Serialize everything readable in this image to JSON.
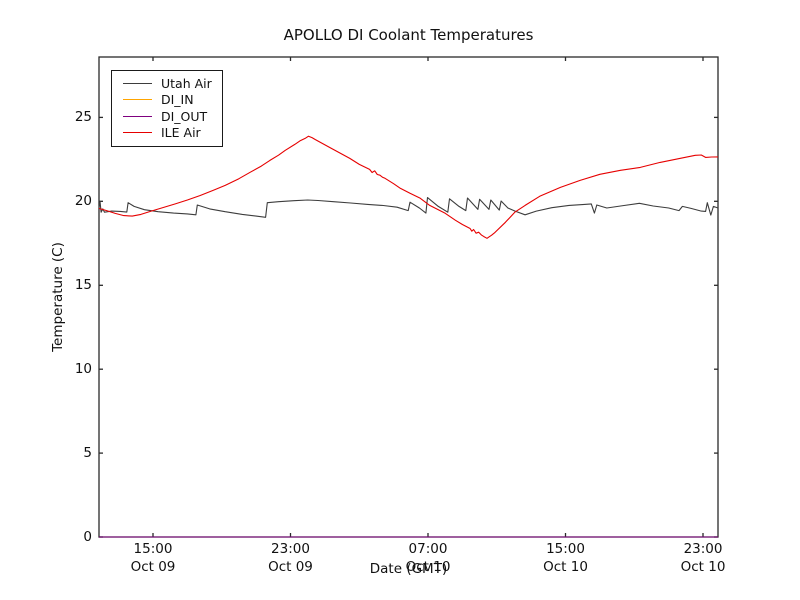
{
  "title": "APOLLO DI Coolant Temperatures",
  "chart_data": {
    "type": "line",
    "title": "APOLLO DI Coolant Temperatures",
    "xlabel": "Date (GMT)",
    "ylabel": "Temperature (C)",
    "x_unit": "hours since Oct 09 00:00 GMT",
    "xlim": [
      11.86,
      47.87
    ],
    "ylim": [
      0,
      28.6
    ],
    "grid": false,
    "legend_position": "upper left",
    "y_ticks": [
      0,
      5,
      10,
      15,
      20,
      25
    ],
    "x_ticks": [
      {
        "value": 15,
        "line1": "15:00",
        "line2": "Oct 09"
      },
      {
        "value": 23,
        "line1": "23:00",
        "line2": "Oct 09"
      },
      {
        "value": 31,
        "line1": "07:00",
        "line2": "Oct 10"
      },
      {
        "value": 39,
        "line1": "15:00",
        "line2": "Oct 10"
      },
      {
        "value": 47,
        "line1": "23:00",
        "line2": "Oct 10"
      }
    ],
    "series": [
      {
        "name": "Utah Air",
        "color": "#3d3d3d",
        "points": [
          [
            11.86,
            19.62
          ],
          [
            11.92,
            20.0
          ],
          [
            11.98,
            19.35
          ],
          [
            12.08,
            19.55
          ],
          [
            12.18,
            19.35
          ],
          [
            12.6,
            19.42
          ],
          [
            13.1,
            19.4
          ],
          [
            13.48,
            19.36
          ],
          [
            13.55,
            19.92
          ],
          [
            13.9,
            19.7
          ],
          [
            14.5,
            19.5
          ],
          [
            15.3,
            19.38
          ],
          [
            16.2,
            19.3
          ],
          [
            17.0,
            19.25
          ],
          [
            17.5,
            19.2
          ],
          [
            17.58,
            19.78
          ],
          [
            18.3,
            19.55
          ],
          [
            19.2,
            19.38
          ],
          [
            20.2,
            19.22
          ],
          [
            21.0,
            19.12
          ],
          [
            21.55,
            19.05
          ],
          [
            21.65,
            19.92
          ],
          [
            22.3,
            19.98
          ],
          [
            23.2,
            20.04
          ],
          [
            24.0,
            20.08
          ],
          [
            24.6,
            20.05
          ],
          [
            25.5,
            19.98
          ],
          [
            26.5,
            19.9
          ],
          [
            27.5,
            19.82
          ],
          [
            28.4,
            19.75
          ],
          [
            29.2,
            19.65
          ],
          [
            29.85,
            19.45
          ],
          [
            29.95,
            19.95
          ],
          [
            30.5,
            19.6
          ],
          [
            30.88,
            19.3
          ],
          [
            30.97,
            20.22
          ],
          [
            31.6,
            19.7
          ],
          [
            32.15,
            19.35
          ],
          [
            32.25,
            20.15
          ],
          [
            32.8,
            19.7
          ],
          [
            33.2,
            19.45
          ],
          [
            33.3,
            20.2
          ],
          [
            33.9,
            19.52
          ],
          [
            34.0,
            20.12
          ],
          [
            34.55,
            19.52
          ],
          [
            34.65,
            20.08
          ],
          [
            35.15,
            19.48
          ],
          [
            35.25,
            20.02
          ],
          [
            35.65,
            19.6
          ],
          [
            36.1,
            19.4
          ],
          [
            36.65,
            19.2
          ],
          [
            37.3,
            19.42
          ],
          [
            38.2,
            19.62
          ],
          [
            39.2,
            19.76
          ],
          [
            40.1,
            19.82
          ],
          [
            40.5,
            19.85
          ],
          [
            40.68,
            19.3
          ],
          [
            40.82,
            19.78
          ],
          [
            41.4,
            19.6
          ],
          [
            42.4,
            19.75
          ],
          [
            43.3,
            19.88
          ],
          [
            44.1,
            19.72
          ],
          [
            45.0,
            19.6
          ],
          [
            45.6,
            19.45
          ],
          [
            45.8,
            19.7
          ],
          [
            46.3,
            19.58
          ],
          [
            46.9,
            19.42
          ],
          [
            47.15,
            19.4
          ],
          [
            47.25,
            19.92
          ],
          [
            47.45,
            19.18
          ],
          [
            47.6,
            19.7
          ],
          [
            47.87,
            19.6
          ]
        ]
      },
      {
        "name": "DI_IN",
        "color": "#ffa500",
        "points": [
          [
            11.86,
            0
          ],
          [
            47.87,
            0
          ]
        ]
      },
      {
        "name": "DI_OUT",
        "color": "#7f007f",
        "points": [
          [
            11.86,
            0
          ],
          [
            47.87,
            0
          ]
        ]
      },
      {
        "name": "ILE Air",
        "color": "#e60000",
        "points": [
          [
            11.86,
            19.58
          ],
          [
            12.3,
            19.45
          ],
          [
            12.8,
            19.28
          ],
          [
            13.3,
            19.15
          ],
          [
            13.8,
            19.12
          ],
          [
            14.3,
            19.22
          ],
          [
            14.85,
            19.4
          ],
          [
            15.5,
            19.6
          ],
          [
            16.3,
            19.85
          ],
          [
            17.0,
            20.08
          ],
          [
            17.75,
            20.35
          ],
          [
            18.5,
            20.65
          ],
          [
            19.2,
            20.95
          ],
          [
            20.0,
            21.35
          ],
          [
            20.65,
            21.73
          ],
          [
            21.3,
            22.1
          ],
          [
            21.8,
            22.44
          ],
          [
            22.3,
            22.75
          ],
          [
            22.7,
            23.04
          ],
          [
            23.25,
            23.39
          ],
          [
            23.55,
            23.6
          ],
          [
            23.85,
            23.75
          ],
          [
            24.05,
            23.88
          ],
          [
            24.25,
            23.8
          ],
          [
            24.45,
            23.68
          ],
          [
            25.3,
            23.2
          ],
          [
            26.45,
            22.56
          ],
          [
            27.0,
            22.2
          ],
          [
            27.6,
            21.9
          ],
          [
            27.75,
            21.72
          ],
          [
            27.9,
            21.82
          ],
          [
            28.05,
            21.6
          ],
          [
            28.2,
            21.56
          ],
          [
            28.35,
            21.44
          ],
          [
            28.5,
            21.37
          ],
          [
            29.0,
            21.05
          ],
          [
            29.4,
            20.77
          ],
          [
            29.95,
            20.48
          ],
          [
            30.55,
            20.18
          ],
          [
            31.1,
            19.76
          ],
          [
            32.0,
            19.29
          ],
          [
            32.6,
            18.87
          ],
          [
            33.0,
            18.62
          ],
          [
            33.45,
            18.38
          ],
          [
            33.55,
            18.22
          ],
          [
            33.65,
            18.32
          ],
          [
            33.8,
            18.1
          ],
          [
            33.95,
            18.16
          ],
          [
            34.1,
            18.0
          ],
          [
            34.25,
            17.9
          ],
          [
            34.43,
            17.8
          ],
          [
            34.55,
            17.88
          ],
          [
            34.7,
            17.98
          ],
          [
            34.9,
            18.15
          ],
          [
            35.5,
            18.75
          ],
          [
            36.05,
            19.35
          ],
          [
            36.65,
            19.76
          ],
          [
            37.5,
            20.3
          ],
          [
            38.7,
            20.83
          ],
          [
            39.85,
            21.25
          ],
          [
            41.0,
            21.61
          ],
          [
            42.2,
            21.85
          ],
          [
            43.35,
            22.02
          ],
          [
            44.5,
            22.32
          ],
          [
            45.65,
            22.56
          ],
          [
            46.55,
            22.74
          ],
          [
            46.9,
            22.76
          ],
          [
            47.15,
            22.62
          ],
          [
            47.5,
            22.64
          ],
          [
            47.87,
            22.65
          ]
        ]
      }
    ]
  }
}
